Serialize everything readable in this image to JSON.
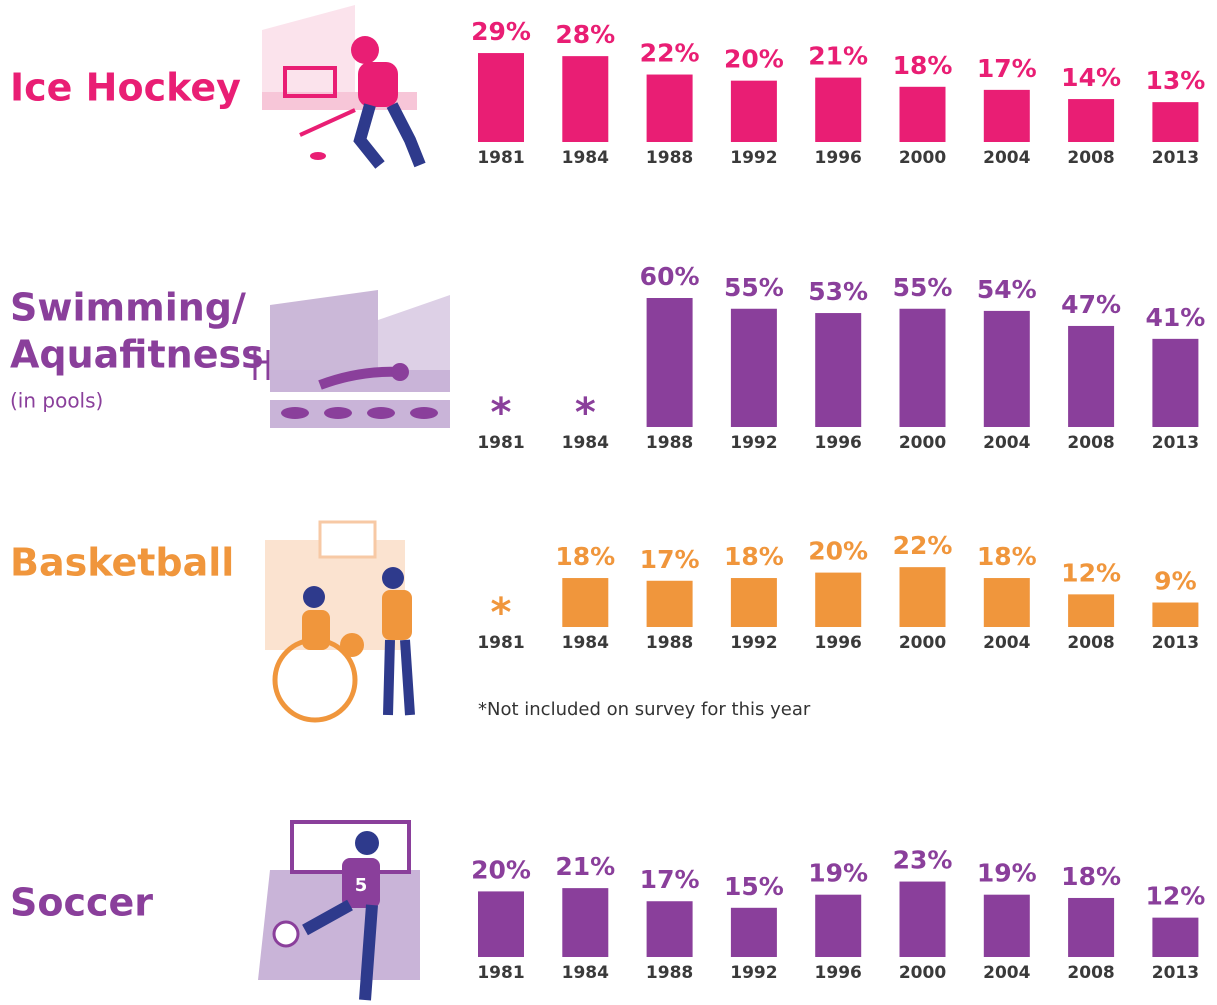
{
  "chart_data": [
    {
      "type": "bar",
      "title": [
        "Ice Hockey"
      ],
      "color": "#e91e74",
      "categories": [
        "1981",
        "1984",
        "1988",
        "1992",
        "1996",
        "2000",
        "2004",
        "2008",
        "2013"
      ],
      "values": [
        29,
        28,
        22,
        20,
        21,
        18,
        17,
        14,
        13
      ],
      "value_labels": [
        "29%",
        "28%",
        "22%",
        "20%",
        "21%",
        "18%",
        "17%",
        "14%",
        "13%"
      ],
      "ylim": [
        0,
        30
      ]
    },
    {
      "type": "bar",
      "title": [
        "Swimming/",
        "Aquafitness"
      ],
      "subtitle": "(in pools)",
      "color": "#8a3f9b",
      "categories": [
        "1981",
        "1984",
        "1988",
        "1992",
        "1996",
        "2000",
        "2004",
        "2008",
        "2013"
      ],
      "values": [
        null,
        null,
        60,
        55,
        53,
        55,
        54,
        47,
        41
      ],
      "value_labels": [
        "*",
        "*",
        "60%",
        "55%",
        "53%",
        "55%",
        "54%",
        "47%",
        "41%"
      ],
      "ylim": [
        0,
        60
      ]
    },
    {
      "type": "bar",
      "title": [
        "Basketball"
      ],
      "color": "#f0963c",
      "categories": [
        "1981",
        "1984",
        "1988",
        "1992",
        "1996",
        "2000",
        "2004",
        "2008",
        "2013"
      ],
      "values": [
        null,
        18,
        17,
        18,
        20,
        22,
        18,
        12,
        9
      ],
      "value_labels": [
        "*",
        "18%",
        "17%",
        "18%",
        "20%",
        "22%",
        "18%",
        "12%",
        "9%"
      ],
      "ylim": [
        0,
        25
      ],
      "note": "*Not included on survey for this year"
    },
    {
      "type": "bar",
      "title": [
        "Soccer"
      ],
      "color": "#8a3f9b",
      "categories": [
        "1981",
        "1984",
        "1988",
        "1992",
        "1996",
        "2000",
        "2004",
        "2008",
        "2013"
      ],
      "values": [
        20,
        21,
        17,
        15,
        19,
        23,
        19,
        18,
        12
      ],
      "value_labels": [
        "20%",
        "21%",
        "17%",
        "15%",
        "19%",
        "23%",
        "19%",
        "18%",
        "12%"
      ],
      "ylim": [
        0,
        25
      ]
    }
  ]
}
